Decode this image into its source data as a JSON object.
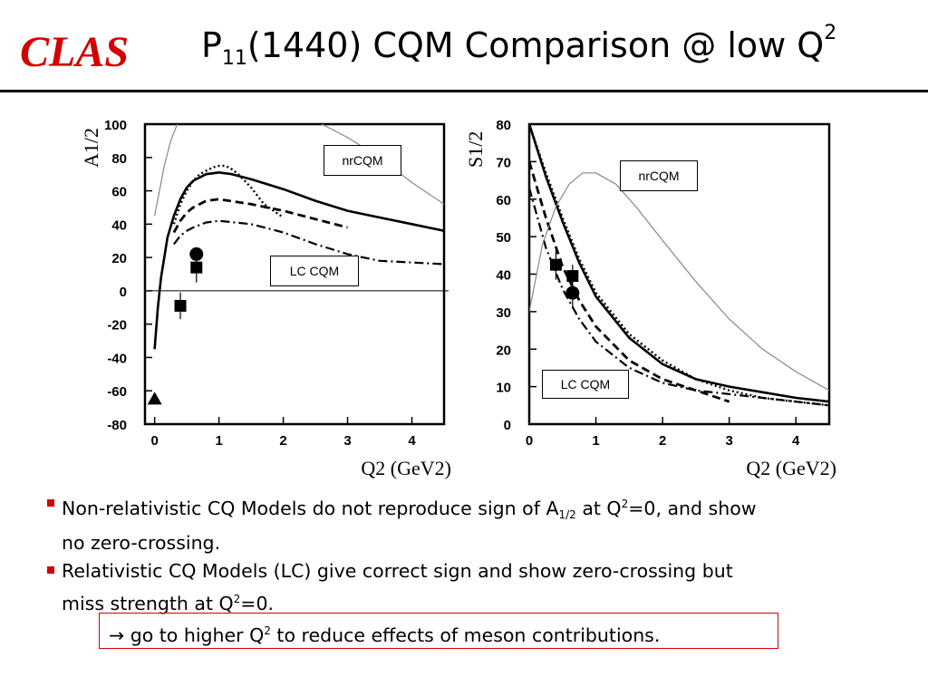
{
  "header": {
    "logo": "CLAS",
    "title_main": "P",
    "title_sub": "11",
    "title_rest": "(1440) CQM Comparison @ low Q",
    "title_sup": "2"
  },
  "chart_data": [
    {
      "type": "line",
      "ylabel": "A1/2",
      "xlabel": "Q2 (GeV2)",
      "xlim": [
        -0.15,
        4.5
      ],
      "ylim": [
        -80,
        100
      ],
      "xticks": [
        0,
        1,
        2,
        3,
        4
      ],
      "yticks": [
        -80,
        -60,
        -40,
        -20,
        0,
        20,
        40,
        60,
        80,
        100
      ],
      "grid": false,
      "annotations": [
        "nrCQM",
        "LC CQM"
      ],
      "series": [
        {
          "style": "solid-thick",
          "x": [
            0.0,
            0.05,
            0.1,
            0.15,
            0.2,
            0.3,
            0.4,
            0.5,
            0.6,
            0.8,
            1.0,
            1.2,
            1.5,
            2.0,
            2.5,
            3.0,
            3.5,
            4.0,
            4.5
          ],
          "y": [
            -35,
            -10,
            8,
            20,
            32,
            45,
            55,
            62,
            66,
            70,
            71,
            70,
            67,
            61,
            54,
            48,
            44,
            40,
            36
          ]
        },
        {
          "style": "dotted",
          "x": [
            0.3,
            0.4,
            0.5,
            0.6,
            0.7,
            0.8,
            0.9,
            1.0,
            1.1,
            1.2,
            1.3,
            1.5,
            1.7,
            2.0
          ],
          "y": [
            40,
            52,
            60,
            66,
            70,
            72,
            74,
            75,
            75,
            73,
            70,
            62,
            52,
            44
          ]
        },
        {
          "style": "dashed-thick",
          "x": [
            0.3,
            0.4,
            0.5,
            0.6,
            0.8,
            1.0,
            1.5,
            2.0,
            2.5,
            3.0
          ],
          "y": [
            35,
            42,
            47,
            50,
            54,
            55,
            52,
            48,
            43,
            38
          ]
        },
        {
          "style": "dash-dot",
          "x": [
            0.3,
            0.4,
            0.5,
            0.6,
            0.8,
            1.0,
            1.5,
            2.0,
            2.5,
            3.0,
            3.5,
            4.0,
            4.5
          ],
          "y": [
            28,
            33,
            36,
            38,
            41,
            42,
            40,
            35,
            28,
            22,
            18,
            17,
            16
          ]
        },
        {
          "style": "thin-grey",
          "x": [
            0.0,
            0.15,
            0.25,
            0.35
          ],
          "y": [
            45,
            75,
            90,
            100
          ]
        },
        {
          "style": "thin-grey",
          "x": [
            2.6,
            3.0,
            3.5,
            4.0,
            4.5
          ],
          "y": [
            100,
            92,
            80,
            65,
            52
          ]
        }
      ],
      "points": [
        {
          "marker": "triangle",
          "x": 0.0,
          "y": -65
        },
        {
          "marker": "square",
          "x": 0.4,
          "y": -9,
          "err": 8
        },
        {
          "marker": "square",
          "x": 0.65,
          "y": 14,
          "err": 9
        },
        {
          "marker": "circle",
          "x": 0.65,
          "y": 22
        }
      ],
      "zero_line": true
    },
    {
      "type": "line",
      "ylabel": "S1/2",
      "xlabel": "Q2 (GeV2)",
      "xlim": [
        0,
        4.5
      ],
      "ylim": [
        0,
        80
      ],
      "xticks": [
        0,
        1,
        2,
        3,
        4
      ],
      "yticks": [
        0,
        10,
        20,
        30,
        40,
        50,
        60,
        70,
        80
      ],
      "grid": false,
      "annotations": [
        "nrCQM",
        "LC CQM"
      ],
      "series": [
        {
          "style": "solid-thick",
          "x": [
            0.0,
            0.25,
            0.5,
            0.75,
            1.0,
            1.5,
            2.0,
            2.5,
            3.0,
            3.5,
            4.0,
            4.5
          ],
          "y": [
            80,
            66,
            54,
            43,
            34,
            23,
            16,
            12,
            10,
            8.5,
            7,
            6
          ]
        },
        {
          "style": "dotted",
          "x": [
            0.0,
            0.25,
            0.5,
            0.75,
            1.0,
            1.5,
            2.0,
            2.5,
            3.0,
            3.5,
            4.0,
            4.5
          ],
          "y": [
            80,
            67,
            55,
            44,
            35,
            24,
            17,
            12,
            9,
            7,
            6,
            5
          ]
        },
        {
          "style": "dashed-thick",
          "x": [
            0.0,
            0.25,
            0.5,
            0.75,
            1.0,
            1.5,
            2.0,
            2.5,
            3.0
          ],
          "y": [
            70,
            55,
            42,
            33,
            26,
            17,
            12,
            9,
            6
          ]
        },
        {
          "style": "dash-dot",
          "x": [
            0.0,
            0.25,
            0.5,
            0.75,
            1.0,
            1.5,
            2.0,
            2.5,
            3.0,
            3.5,
            4.0,
            4.5
          ],
          "y": [
            63,
            47,
            36,
            28,
            22,
            15,
            11,
            9,
            8,
            7,
            6,
            5
          ]
        },
        {
          "style": "thin-grey",
          "x": [
            0.0,
            0.2,
            0.4,
            0.6,
            0.8,
            1.0,
            1.3,
            1.6,
            2.0,
            2.5,
            3.0,
            3.5,
            4.0,
            4.5
          ],
          "y": [
            30,
            48,
            58,
            64,
            67,
            67,
            64,
            58,
            49,
            38,
            28,
            20,
            14,
            9
          ]
        }
      ],
      "points": [
        {
          "marker": "square",
          "x": 0.4,
          "y": 42.5,
          "err": 4
        },
        {
          "marker": "square",
          "x": 0.65,
          "y": 39.5,
          "err": 3
        },
        {
          "marker": "circle",
          "x": 0.65,
          "y": 35,
          "err": 4
        }
      ],
      "zero_line": false
    }
  ],
  "bullets": [
    {
      "p1": "Non-relativistic CQ Models do not reproduce sign of A",
      "sub": "1/2",
      "p2": " at Q",
      "sup": "2",
      "p3": "=0, and show",
      "cont": "no zero-crossing."
    },
    {
      "p1": "Relativistic CQ Models (LC) give correct sign and show zero-crossing but",
      "cont_a": "miss strength at Q",
      "cont_sup": "2",
      "cont_b": "=0."
    }
  ],
  "callout": {
    "a": "→ go to higher Q",
    "sup": "2",
    "b": " to reduce effects of meson contributions."
  },
  "colors": {
    "accent": "#d40000",
    "curve": "#000000",
    "grey_curve": "#888888"
  }
}
